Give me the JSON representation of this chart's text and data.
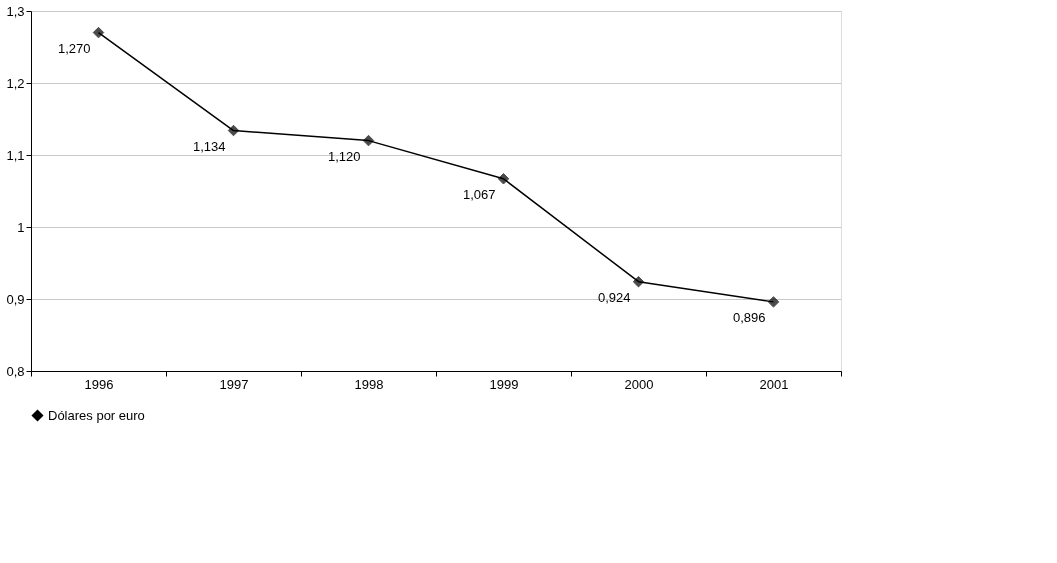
{
  "chart_data": {
    "type": "line",
    "categories": [
      "1996",
      "1997",
      "1998",
      "1999",
      "2000",
      "2001"
    ],
    "series": [
      {
        "name": "Dólares por euro",
        "color": "#000000",
        "values": [
          1.27,
          1.134,
          1.12,
          1.067,
          0.924,
          0.896
        ],
        "value_labels": [
          "1,270",
          "1,134",
          "1,120",
          "1,067",
          "0,924",
          "0,896"
        ]
      }
    ],
    "ylim": [
      0.8,
      1.3
    ],
    "yticks": [
      {
        "value": 0.8,
        "label": "0,8"
      },
      {
        "value": 0.9,
        "label": "0,9"
      },
      {
        "value": 1,
        "label": "1"
      },
      {
        "value": 1.1,
        "label": "1,1"
      },
      {
        "value": 1.2,
        "label": "1,2"
      },
      {
        "value": 1.3,
        "label": "1,3"
      }
    ],
    "grid": "y",
    "legend": "bottom",
    "marker": "diamond",
    "line_style": "solid"
  }
}
